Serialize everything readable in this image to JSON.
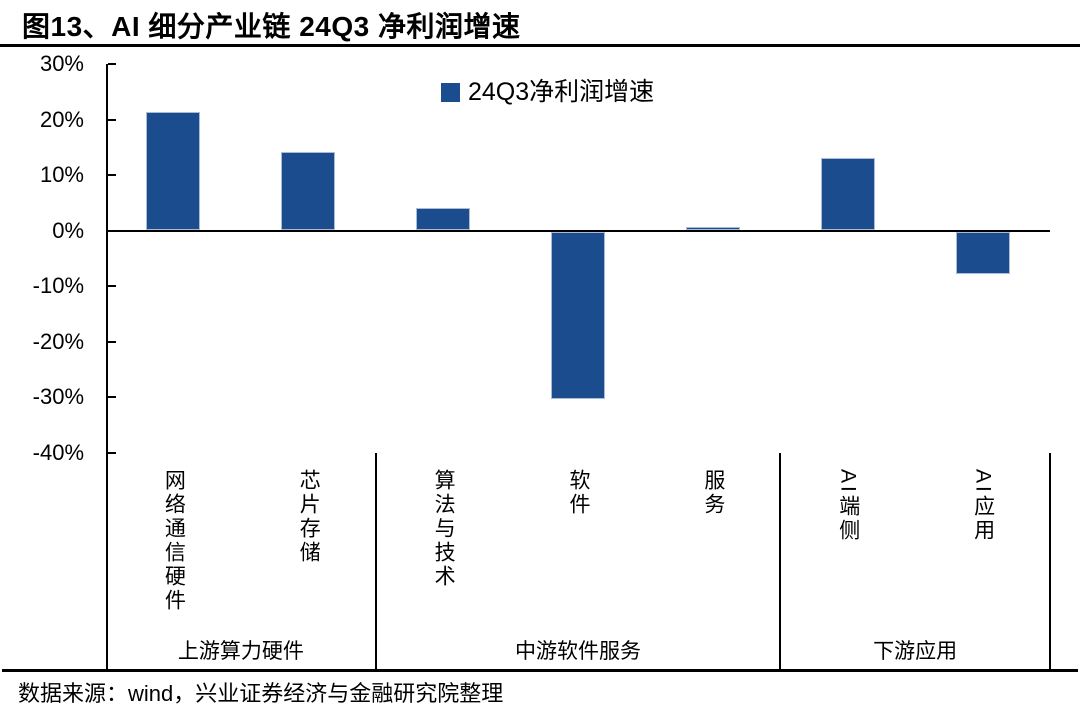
{
  "title": "图13、AI 细分产业链 24Q3 净利润增速",
  "source": "数据来源：wind，兴业证券经济与金融研究院整理",
  "chart_data": {
    "type": "bar",
    "title": "图13、AI 细分产业链 24Q3 净利润增速",
    "legend_label": "24Q3净利润增速",
    "legend_position": "top-center",
    "categories": [
      "网络通信硬件",
      "芯片存储",
      "算法与技术",
      "软件",
      "服务",
      "AI端侧",
      "AI应用"
    ],
    "values": [
      21.4,
      14.2,
      4.0,
      -30.1,
      0.7,
      13.0,
      -7.6
    ],
    "unit": "%",
    "groups": [
      {
        "label": "上游算力硬件",
        "start": 0,
        "end": 1
      },
      {
        "label": "中游软件服务",
        "start": 2,
        "end": 4
      },
      {
        "label": "下游应用",
        "start": 5,
        "end": 6
      }
    ],
    "ylim": [
      -40,
      30
    ],
    "ytick_step": 10,
    "ytick_labels": [
      "30%",
      "20%",
      "10%",
      "0%",
      "-10%",
      "-20%",
      "-30%",
      "-40%"
    ],
    "grid": false,
    "bar_color": "#1A4C8E",
    "axis_color": "#000000",
    "text_color": "#000000",
    "source": "数据来源：wind，兴业证券经济与金融研究院整理"
  }
}
